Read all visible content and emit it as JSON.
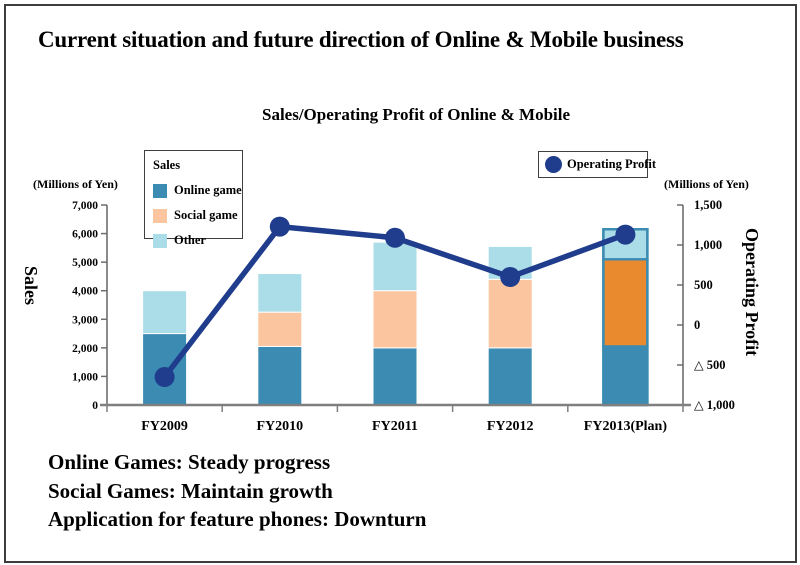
{
  "page": {
    "title": "Current situation and future direction of Online & Mobile business"
  },
  "chart": {
    "subtitle": "Sales/Operating Profit of Online & Mobile",
    "left_unit": "(Millions of Yen)",
    "right_unit": "(Millions of Yen)",
    "left_axis_title": "Sales",
    "right_axis_title": "Operating Profit",
    "legend_sales": {
      "title": "Sales",
      "items": [
        {
          "label": "Online game",
          "color": "#3b8bb2"
        },
        {
          "label": "Social game",
          "color": "#fbc5a0"
        },
        {
          "label": "Other",
          "color": "#abdde8"
        }
      ]
    },
    "legend_line": {
      "label": "Operating Profit",
      "color": "#1f3d8c"
    }
  },
  "chart_data": {
    "type": "bar+line",
    "title": "Sales/Operating Profit of Online & Mobile",
    "categories": [
      "FY2009",
      "FY2010",
      "FY2011",
      "FY2012",
      "FY2013(Plan)"
    ],
    "bar_series": [
      {
        "name": "Online game",
        "values": [
          2500,
          2050,
          2000,
          2000,
          2050
        ],
        "color": "#3b8bb2"
      },
      {
        "name": "Social game",
        "values": [
          0,
          1200,
          2000,
          2400,
          3050
        ],
        "color": "#fbc5a0",
        "plan_color": "#e98a2f"
      },
      {
        "name": "Other",
        "values": [
          1500,
          1350,
          1700,
          1150,
          1050
        ],
        "color": "#abdde8"
      }
    ],
    "line_series": {
      "name": "Operating Profit",
      "values": [
        -650,
        1230,
        1090,
        600,
        1130
      ],
      "color": "#1f3d8c"
    },
    "left_axis": {
      "label": "Sales",
      "unit": "(Millions of Yen)",
      "min": 0,
      "max": 7000,
      "tick_labels": [
        "7,000",
        "6,000",
        "5,000",
        "4,000",
        "3,000",
        "2,000",
        "1,000",
        "0"
      ]
    },
    "right_axis": {
      "label": "Operating Profit",
      "unit": "(Millions of Yen)",
      "min": -1000,
      "max": 1500,
      "tick_labels": [
        "1,500",
        "1,000",
        "500",
        "0",
        "△ 500",
        "△ 1,000"
      ]
    },
    "plan_category_index": 4,
    "plan_border_color": "#3b8bb2",
    "axis_color": "#6e6e6e",
    "x_axis_color": "#7f7f7f",
    "legend_position": "top",
    "grid": false
  },
  "notes": {
    "lines": [
      "Online Games: Steady progress",
      "Social Games: Maintain growth",
      "Application for feature phones: Downturn"
    ]
  }
}
